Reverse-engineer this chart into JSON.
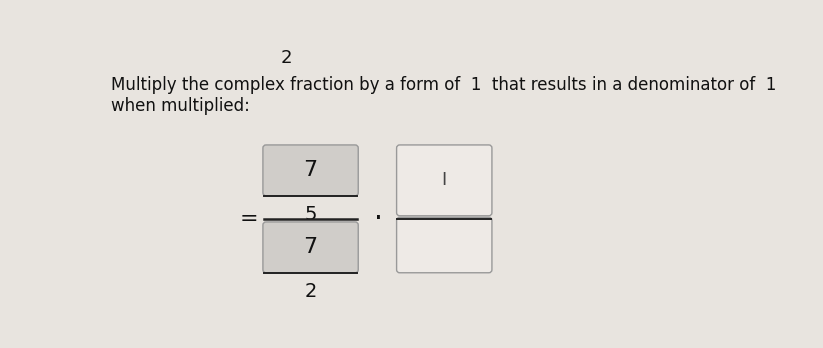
{
  "bg_color": "#e8e4df",
  "top_number": "2",
  "instruction_line1": "Multiply the complex fraction by a form of  1  that results in a denominator of  1",
  "instruction_line2": "when multiplied:",
  "num_top_val": "7",
  "num_bot_val": "5",
  "den_top_val": "7",
  "den_bot_val": "2",
  "box_fill_grey": "#d0cdc9",
  "box_fill_empty": "#eeeae6",
  "box_border": "#999999",
  "line_color": "#222222",
  "text_color": "#111111",
  "cursor_color": "#444444"
}
